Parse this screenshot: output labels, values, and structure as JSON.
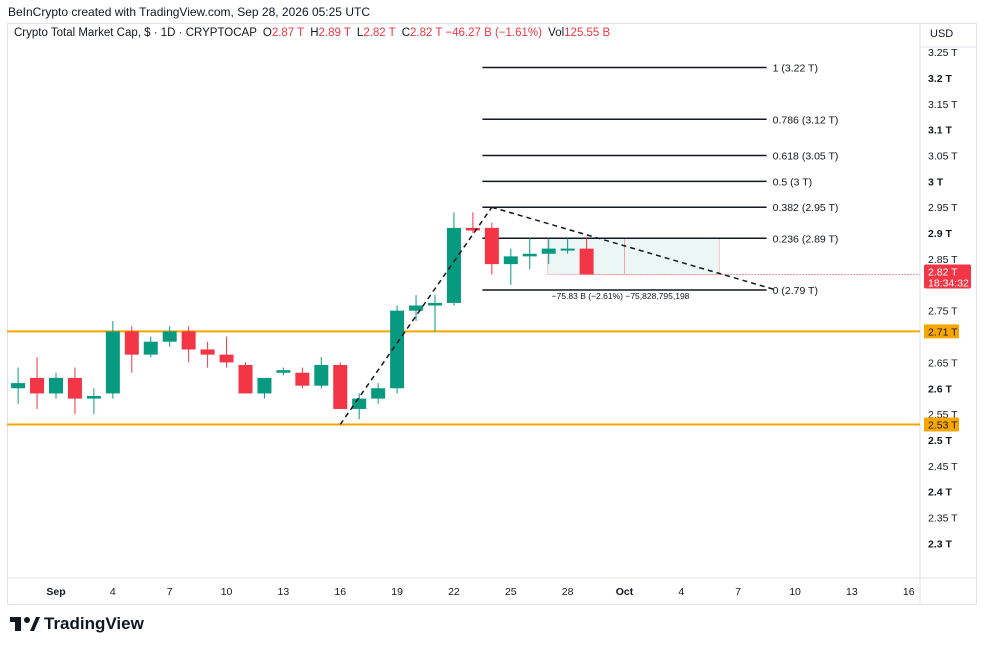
{
  "header": {
    "attribution": "BeInCrypto created with TradingView.com, Sep 28, 2026 05:25 UTC"
  },
  "legend": {
    "symbol": "Crypto Total Market Cap, $ · 1D · CRYPTOCAP",
    "o_label": "O",
    "o": "2.87 T",
    "h_label": "H",
    "h": "2.89 T",
    "l_label": "L",
    "l": "2.82 T",
    "c_label": "C",
    "c": "2.82 T",
    "change": "−46.27 B (−1.61%)",
    "vol_label": "Vol",
    "vol": "125.55 B"
  },
  "currency": "USD",
  "brand": "TradingView",
  "colors": {
    "up": "#089981",
    "down": "#f23645",
    "support": "#f7a600",
    "fib": "#131722",
    "price": "#f23645"
  },
  "chart_data": {
    "type": "candlestick",
    "ylim": [
      2.21,
      3.31
    ],
    "x_tick_labels": [
      {
        "i": 0,
        "label": "Sep"
      },
      {
        "i": 3,
        "label": "4"
      },
      {
        "i": 6,
        "label": "7"
      },
      {
        "i": 9,
        "label": "10"
      },
      {
        "i": 12,
        "label": "13"
      },
      {
        "i": 15,
        "label": "16"
      },
      {
        "i": 18,
        "label": "19"
      },
      {
        "i": 21,
        "label": "22"
      },
      {
        "i": 24,
        "label": "25"
      },
      {
        "i": 27,
        "label": "28"
      },
      {
        "i": 30,
        "label": "Oct"
      },
      {
        "i": 33,
        "label": "4"
      },
      {
        "i": 36,
        "label": "7"
      },
      {
        "i": 39,
        "label": "10"
      },
      {
        "i": 42,
        "label": "13"
      },
      {
        "i": 45,
        "label": "16"
      }
    ],
    "y_ticks": [
      {
        "v": 3.25,
        "label": "3.25 T"
      },
      {
        "v": 3.2,
        "label": "3.2 T",
        "bold": true
      },
      {
        "v": 3.15,
        "label": "3.15 T"
      },
      {
        "v": 3.1,
        "label": "3.1 T",
        "bold": true
      },
      {
        "v": 3.05,
        "label": "3.05 T"
      },
      {
        "v": 3.0,
        "label": "3 T",
        "bold": true
      },
      {
        "v": 2.95,
        "label": "2.95 T"
      },
      {
        "v": 2.9,
        "label": "2.9 T",
        "bold": true
      },
      {
        "v": 2.85,
        "label": "2.85 T"
      },
      {
        "v": 2.75,
        "label": "2.75 T"
      },
      {
        "v": 2.65,
        "label": "2.65 T"
      },
      {
        "v": 2.6,
        "label": "2.6 T",
        "bold": true
      },
      {
        "v": 2.55,
        "label": "2.55 T"
      },
      {
        "v": 2.5,
        "label": "2.5 T",
        "bold": true
      },
      {
        "v": 2.45,
        "label": "2.45 T"
      },
      {
        "v": 2.4,
        "label": "2.4 T",
        "bold": true
      },
      {
        "v": 2.35,
        "label": "2.35 T"
      },
      {
        "v": 2.3,
        "label": "2.3 T",
        "bold": true
      }
    ],
    "candles": [
      {
        "i": -2,
        "o": 2.6,
        "h": 2.64,
        "l": 2.57,
        "c": 2.61
      },
      {
        "i": -1,
        "o": 2.62,
        "h": 2.66,
        "l": 2.56,
        "c": 2.59
      },
      {
        "i": 0,
        "o": 2.59,
        "h": 2.63,
        "l": 2.58,
        "c": 2.62
      },
      {
        "i": 1,
        "o": 2.62,
        "h": 2.64,
        "l": 2.55,
        "c": 2.58
      },
      {
        "i": 2,
        "o": 2.58,
        "h": 2.6,
        "l": 2.55,
        "c": 2.585
      },
      {
        "i": 3,
        "o": 2.59,
        "h": 2.73,
        "l": 2.58,
        "c": 2.71
      },
      {
        "i": 4,
        "o": 2.71,
        "h": 2.72,
        "l": 2.63,
        "c": 2.665
      },
      {
        "i": 5,
        "o": 2.665,
        "h": 2.7,
        "l": 2.66,
        "c": 2.69
      },
      {
        "i": 6,
        "o": 2.69,
        "h": 2.72,
        "l": 2.68,
        "c": 2.71
      },
      {
        "i": 7,
        "o": 2.71,
        "h": 2.72,
        "l": 2.65,
        "c": 2.675
      },
      {
        "i": 8,
        "o": 2.675,
        "h": 2.69,
        "l": 2.64,
        "c": 2.665
      },
      {
        "i": 9,
        "o": 2.665,
        "h": 2.7,
        "l": 2.64,
        "c": 2.65
      },
      {
        "i": 10,
        "o": 2.645,
        "h": 2.65,
        "l": 2.59,
        "c": 2.59
      },
      {
        "i": 11,
        "o": 2.59,
        "h": 2.61,
        "l": 2.58,
        "c": 2.62
      },
      {
        "i": 12,
        "o": 2.63,
        "h": 2.64,
        "l": 2.625,
        "c": 2.635
      },
      {
        "i": 13,
        "o": 2.63,
        "h": 2.64,
        "l": 2.6,
        "c": 2.605
      },
      {
        "i": 14,
        "o": 2.605,
        "h": 2.66,
        "l": 2.6,
        "c": 2.645
      },
      {
        "i": 15,
        "o": 2.645,
        "h": 2.65,
        "l": 2.56,
        "c": 2.56
      },
      {
        "i": 16,
        "o": 2.56,
        "h": 2.59,
        "l": 2.54,
        "c": 2.58
      },
      {
        "i": 17,
        "o": 2.58,
        "h": 2.61,
        "l": 2.57,
        "c": 2.6
      },
      {
        "i": 18,
        "o": 2.6,
        "h": 2.76,
        "l": 2.59,
        "c": 2.75
      },
      {
        "i": 19,
        "o": 2.75,
        "h": 2.78,
        "l": 2.73,
        "c": 2.76
      },
      {
        "i": 20,
        "o": 2.76,
        "h": 2.78,
        "l": 2.71,
        "c": 2.765
      },
      {
        "i": 21,
        "o": 2.765,
        "h": 2.94,
        "l": 2.76,
        "c": 2.91
      },
      {
        "i": 22,
        "o": 2.91,
        "h": 2.94,
        "l": 2.9,
        "c": 2.905
      },
      {
        "i": 23,
        "o": 2.91,
        "h": 2.92,
        "l": 2.82,
        "c": 2.84
      },
      {
        "i": 24,
        "o": 2.84,
        "h": 2.87,
        "l": 2.8,
        "c": 2.855
      },
      {
        "i": 25,
        "o": 2.855,
        "h": 2.89,
        "l": 2.83,
        "c": 2.86
      },
      {
        "i": 26,
        "o": 2.86,
        "h": 2.89,
        "l": 2.84,
        "c": 2.87
      },
      {
        "i": 27,
        "o": 2.87,
        "h": 2.89,
        "l": 2.86,
        "c": 2.87
      },
      {
        "i": 28,
        "o": 2.87,
        "h": 2.89,
        "l": 2.82,
        "c": 2.82
      }
    ],
    "fib_levels": [
      {
        "v": 3.22,
        "label": "1 (3.22 T)"
      },
      {
        "v": 3.12,
        "label": "0.786 (3.12 T)"
      },
      {
        "v": 3.05,
        "label": "0.618 (3.05 T)"
      },
      {
        "v": 3.0,
        "label": "0.5 (3 T)"
      },
      {
        "v": 2.95,
        "label": "0.382 (2.95 T)"
      },
      {
        "v": 2.89,
        "label": "0.236 (2.89 T)"
      },
      {
        "v": 2.79,
        "label": "0 (2.79 T)"
      }
    ],
    "support_lines": [
      {
        "v": 2.71,
        "label": "2.71 T"
      },
      {
        "v": 2.53,
        "label": "2.53 T"
      }
    ],
    "current_price": {
      "v": 2.82,
      "label": "2.82 T",
      "countdown": "18:34:32"
    },
    "measure_label": "−75.83 B (−2.61%) −75,828,795,198",
    "trend_lines": [
      {
        "from": {
          "i": 15,
          "v": 2.53
        },
        "to": {
          "i": 23,
          "v": 2.95
        }
      },
      {
        "from": {
          "i": 23,
          "v": 2.95
        },
        "to": {
          "i": 38,
          "v": 2.79
        }
      }
    ]
  }
}
